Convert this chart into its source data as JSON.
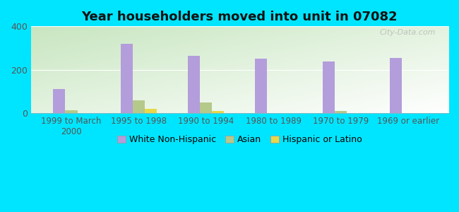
{
  "title": "Year householders moved into unit in 07082",
  "categories": [
    "1999 to March\n2000",
    "1995 to 1998",
    "1990 to 1994",
    "1980 to 1989",
    "1970 to 1979",
    "1969 or earlier"
  ],
  "white_non_hispanic": [
    110,
    320,
    265,
    250,
    240,
    255
  ],
  "asian": [
    15,
    60,
    50,
    0,
    10,
    0
  ],
  "hispanic_or_latino": [
    0,
    20,
    10,
    0,
    0,
    0
  ],
  "white_color": "#b39ddb",
  "asian_color": "#b5c98a",
  "hispanic_color": "#e8d84a",
  "background_color": "#00e5ff",
  "ylim": [
    0,
    400
  ],
  "yticks": [
    0,
    200,
    400
  ],
  "bar_width": 0.18,
  "legend_labels": [
    "White Non-Hispanic",
    "Asian",
    "Hispanic or Latino"
  ],
  "watermark": "City-Data.com"
}
